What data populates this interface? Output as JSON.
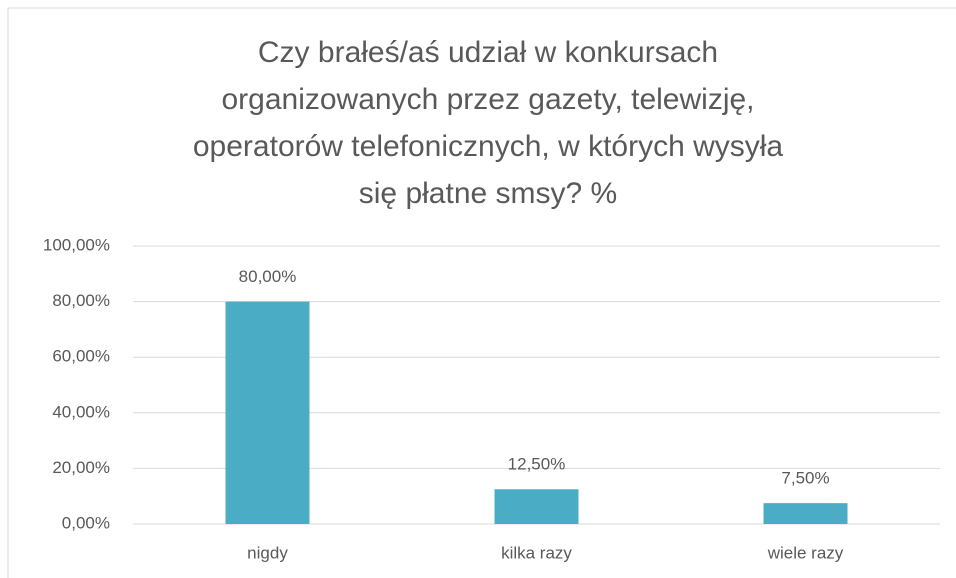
{
  "chart_data": {
    "type": "bar",
    "title": [
      "Czy brałeś/aś udział w konkursach",
      "organizowanych przez gazety, telewizję,",
      "operatorów telefonicznych, w których wysyła",
      "się płatne smsy? %"
    ],
    "categories": [
      "nigdy",
      "kilka razy",
      "wiele razy"
    ],
    "values": [
      80,
      12.5,
      7.5
    ],
    "value_labels": [
      "80,00%",
      "12,50%",
      "7,50%"
    ],
    "color": "#4bacc6",
    "ylim": [
      0,
      100
    ],
    "yticks": [
      {
        "value": 0,
        "label": "0,00%"
      },
      {
        "value": 20,
        "label": "20,00%"
      },
      {
        "value": 40,
        "label": "40,00%"
      },
      {
        "value": 60,
        "label": "60,00%"
      },
      {
        "value": 80,
        "label": "80,00%"
      },
      {
        "value": 100,
        "label": "100,00%"
      }
    ],
    "grid": true
  }
}
